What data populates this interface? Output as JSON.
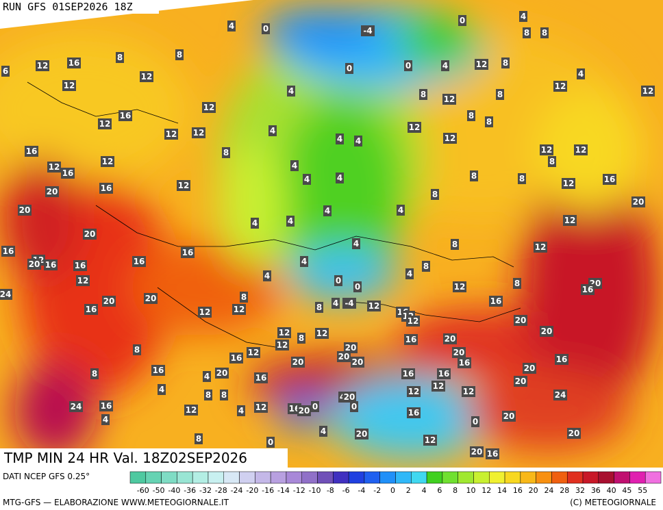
{
  "header": {
    "run": "RUN GFS 01SEP2026 18Z"
  },
  "map": {
    "title": "TMP MIN 24 HR Val. 18Z02SEP2026",
    "labels": [
      4,
      0,
      -4,
      0,
      4,
      8,
      8,
      6,
      12,
      16,
      8,
      8,
      12,
      12,
      0,
      0,
      4,
      12,
      8,
      4,
      12,
      12,
      4,
      8,
      12,
      8,
      12,
      12,
      16,
      8,
      8,
      12,
      4,
      12,
      12,
      12,
      16,
      8,
      4,
      4,
      12,
      12,
      8,
      12,
      12,
      16,
      4,
      12,
      16,
      4,
      4,
      8,
      8,
      12,
      16,
      20,
      8,
      20,
      20,
      4,
      4,
      4,
      4,
      12,
      20,
      4,
      8,
      12,
      16,
      16,
      16,
      4,
      12,
      20,
      16,
      16,
      8,
      4,
      12,
      4,
      0,
      0,
      20,
      16,
      8,
      12,
      24,
      8,
      20,
      20,
      4,
      -4,
      8,
      12,
      16,
      12,
      16,
      12,
      16,
      12,
      20,
      12,
      8,
      12,
      20,
      12,
      12,
      20,
      20,
      16,
      8,
      12,
      16,
      20,
      20,
      20,
      20,
      16,
      16,
      16,
      20,
      8,
      16,
      16,
      20,
      4,
      16,
      20,
      4,
      12,
      12,
      12,
      8,
      8,
      4,
      20,
      24,
      24,
      16,
      12,
      4,
      12,
      16,
      20,
      0,
      0,
      16,
      20,
      4,
      0,
      4,
      20,
      20,
      8,
      0,
      12,
      20,
      16
    ]
  },
  "colorbar": {
    "ticks": [
      -60,
      -50,
      -40,
      -36,
      -32,
      -28,
      -24,
      -20,
      -16,
      -14,
      -12,
      -10,
      -8,
      -6,
      -4,
      -2,
      0,
      2,
      4,
      6,
      8,
      10,
      12,
      14,
      16,
      20,
      24,
      28,
      32,
      36,
      40,
      45,
      55
    ],
    "colors": [
      "#4ec9a0",
      "#66d3b3",
      "#7fdcc4",
      "#99e5d4",
      "#b3eee4",
      "#c8f0f0",
      "#d8e8f5",
      "#d0d0f0",
      "#c4b8e8",
      "#b8a0e0",
      "#a888d8",
      "#9070c8",
      "#7050b8",
      "#4030c0",
      "#2040e0",
      "#2060f0",
      "#2090f8",
      "#30b8f8",
      "#40d8f0",
      "#40d020",
      "#70e030",
      "#a0e830",
      "#c8f030",
      "#f0f030",
      "#f8d820",
      "#f8b818",
      "#f89010",
      "#f06010",
      "#e03020",
      "#c81828",
      "#a81030",
      "#c01070",
      "#e020b0",
      "#f070e0"
    ]
  },
  "footer": {
    "source": "DATI NCEP GFS 0.25°",
    "credit": "MTG-GFS — ELABORAZIONE WWW.METEOGIORNALE.IT",
    "copyright": "(C) METEOGIORNALE"
  }
}
